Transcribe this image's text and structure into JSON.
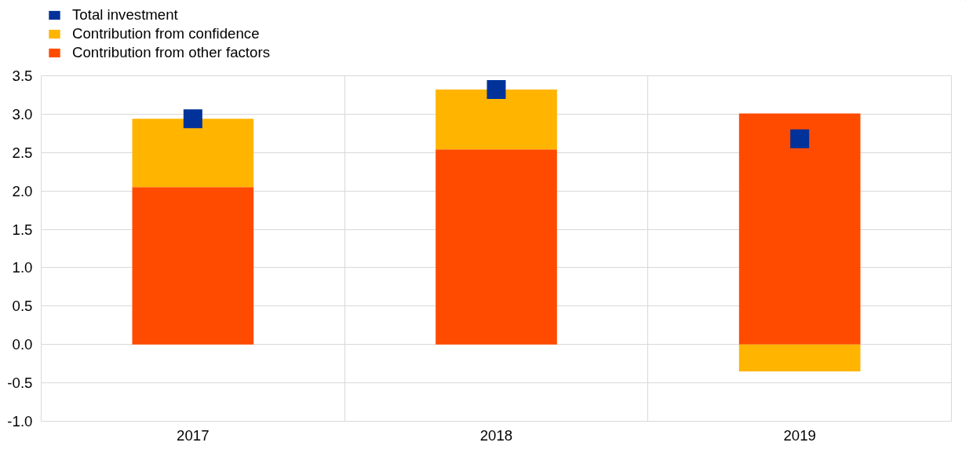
{
  "chart_data": {
    "type": "bar",
    "stacked": true,
    "categories": [
      "2017",
      "2018",
      "2019"
    ],
    "series": [
      {
        "name": "Total investment",
        "type": "scatter",
        "color": "#003299",
        "values": [
          2.94,
          3.32,
          2.68
        ]
      },
      {
        "name": "Contribution from other factors",
        "color": "#ff4b00",
        "values": [
          2.05,
          2.54,
          3.01
        ]
      },
      {
        "name": "Contribution from confidence",
        "color": "#ffb400",
        "values": [
          0.89,
          0.78,
          -0.35
        ]
      }
    ],
    "ylim": [
      -1.0,
      3.5
    ],
    "yticks": [
      {
        "value": -1,
        "label": "-1.0"
      },
      {
        "value": -0.5,
        "label": "-0.5"
      },
      {
        "value": 0,
        "label": "0.0"
      },
      {
        "value": 0.5,
        "label": "0.5"
      },
      {
        "value": 1,
        "label": "1.0"
      },
      {
        "value": 1.5,
        "label": "1.5"
      },
      {
        "value": 2,
        "label": "2.0"
      },
      {
        "value": 2.5,
        "label": "2.5"
      },
      {
        "value": 3,
        "label": "3.0"
      },
      {
        "value": 3.5,
        "label": "3.5"
      }
    ],
    "grid": true,
    "legend": "top left"
  }
}
